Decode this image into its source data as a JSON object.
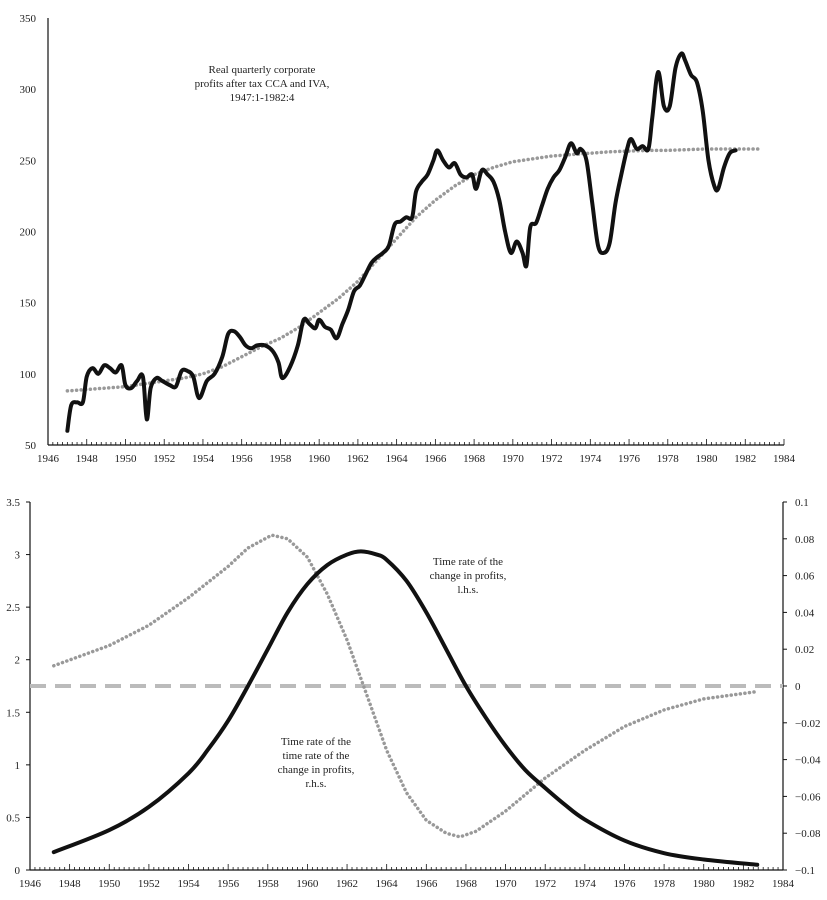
{
  "chart_data": [
    {
      "type": "line",
      "annotation": [
        "Real quarterly corporate",
        "profits after tax CCA and IVA,",
        "1947:1-1982:4"
      ],
      "xlim": [
        1946,
        1984
      ],
      "ylim": [
        50,
        350
      ],
      "xticks": [
        1946,
        1948,
        1950,
        1952,
        1954,
        1956,
        1958,
        1960,
        1962,
        1964,
        1966,
        1968,
        1970,
        1972,
        1974,
        1976,
        1978,
        1980,
        1982,
        1984
      ],
      "yticks": [
        50,
        100,
        150,
        200,
        250,
        300,
        350
      ],
      "grid": false,
      "series": [
        {
          "style": "solid",
          "color": "#111111",
          "x": [
            1947.0,
            1947.2,
            1947.5,
            1947.8,
            1948.0,
            1948.3,
            1948.6,
            1948.9,
            1949.2,
            1949.5,
            1949.8,
            1950.0,
            1950.3,
            1950.6,
            1950.9,
            1951.1,
            1951.3,
            1951.6,
            1951.9,
            1952.3,
            1952.6,
            1952.9,
            1953.2,
            1953.5,
            1953.8,
            1954.2,
            1954.6,
            1955.0,
            1955.3,
            1955.6,
            1955.9,
            1956.2,
            1956.5,
            1956.8,
            1957.2,
            1957.6,
            1957.9,
            1958.1,
            1958.5,
            1958.9,
            1959.2,
            1959.5,
            1959.8,
            1960.0,
            1960.3,
            1960.6,
            1960.9,
            1961.2,
            1961.5,
            1961.8,
            1962.1,
            1962.4,
            1962.7,
            1963.0,
            1963.3,
            1963.6,
            1963.9,
            1964.2,
            1964.5,
            1964.8,
            1965.0,
            1965.3,
            1965.6,
            1965.9,
            1966.1,
            1966.4,
            1966.7,
            1967.0,
            1967.3,
            1967.6,
            1967.9,
            1968.1,
            1968.4,
            1968.7,
            1969.0,
            1969.3,
            1969.6,
            1969.9,
            1970.2,
            1970.5,
            1970.7,
            1970.9,
            1971.2,
            1971.5,
            1971.8,
            1972.1,
            1972.4,
            1972.7,
            1973.0,
            1973.3,
            1973.5,
            1973.8,
            1974.1,
            1974.4,
            1974.7,
            1975.0,
            1975.3,
            1975.6,
            1975.9,
            1976.1,
            1976.4,
            1976.7,
            1977.0,
            1977.2,
            1977.5,
            1977.8,
            1978.1,
            1978.4,
            1978.7,
            1978.9,
            1979.2,
            1979.5,
            1979.8,
            1980.1,
            1980.4,
            1980.6,
            1980.9,
            1981.2,
            1981.5
          ],
          "y": [
            60,
            78,
            80,
            80,
            98,
            104,
            100,
            106,
            104,
            101,
            106,
            92,
            90,
            95,
            98,
            68,
            90,
            97,
            95,
            92,
            91,
            102,
            102,
            98,
            83,
            95,
            100,
            112,
            128,
            130,
            126,
            120,
            118,
            120,
            120,
            116,
            108,
            97,
            105,
            120,
            138,
            135,
            132,
            138,
            133,
            131,
            125,
            135,
            145,
            158,
            162,
            170,
            178,
            182,
            185,
            190,
            205,
            207,
            210,
            210,
            228,
            235,
            240,
            250,
            257,
            250,
            245,
            248,
            240,
            238,
            240,
            230,
            243,
            240,
            235,
            222,
            200,
            185,
            193,
            185,
            176,
            203,
            206,
            218,
            230,
            238,
            243,
            252,
            262,
            255,
            258,
            250,
            220,
            190,
            185,
            192,
            220,
            240,
            258,
            265,
            258,
            260,
            258,
            280,
            312,
            288,
            288,
            315,
            325,
            320,
            310,
            305,
            285,
            250,
            232,
            230,
            245,
            255,
            257
          ]
        },
        {
          "style": "dotted",
          "color": "#999999",
          "x": [
            1947,
            1948,
            1949,
            1950,
            1951,
            1952,
            1953,
            1954,
            1955,
            1956,
            1957,
            1958,
            1959,
            1960,
            1961,
            1962,
            1963,
            1964,
            1965,
            1966,
            1967,
            1968,
            1969,
            1970,
            1971,
            1972,
            1973,
            1974,
            1975,
            1976,
            1977,
            1978,
            1979,
            1980,
            1981,
            1982,
            1982.75
          ],
          "y": [
            88,
            89,
            90,
            91,
            93,
            95,
            97,
            100,
            105,
            112,
            119,
            125,
            133,
            143,
            153,
            165,
            180,
            195,
            210,
            222,
            232,
            240,
            245,
            249,
            251,
            253,
            254,
            255,
            256,
            256.5,
            257,
            257,
            257.5,
            258,
            258,
            258,
            258
          ]
        }
      ]
    },
    {
      "type": "line",
      "xlim": [
        1946,
        1984
      ],
      "ylim": [
        0,
        3.5
      ],
      "y2lim": [
        -0.1,
        0.1
      ],
      "xticks": [
        1946,
        1948,
        1950,
        1952,
        1954,
        1956,
        1958,
        1960,
        1962,
        1964,
        1966,
        1968,
        1970,
        1972,
        1974,
        1976,
        1978,
        1980,
        1982,
        1984
      ],
      "yticks": [
        "0",
        "0.5",
        "1",
        "1.5",
        "2",
        "2.5",
        "3",
        "3.5"
      ],
      "y2ticks": [
        "-0.1",
        "-0.08",
        "-0.06",
        "-0.04",
        "-0.02",
        "0",
        "0.02",
        "0.04",
        "0.06",
        "0.08",
        "0.1"
      ],
      "grid": false,
      "annotations": [
        {
          "lines": [
            "Time rate of the",
            "change in profits,",
            "l.h.s."
          ]
        },
        {
          "lines": [
            "Time rate of the",
            "time rate of the",
            "change in profits,",
            "r.h.s."
          ]
        }
      ],
      "series": [
        {
          "style": "solid",
          "color": "#111111",
          "axis": "left",
          "x": [
            1947.2,
            1950,
            1952,
            1954,
            1955,
            1956,
            1957,
            1958,
            1959,
            1960,
            1961,
            1962,
            1962.7,
            1963.5,
            1964,
            1965,
            1966,
            1967,
            1968,
            1969,
            1970,
            1971,
            1972,
            1973,
            1974,
            1976,
            1978,
            1980,
            1982.7
          ],
          "y": [
            0.17,
            0.38,
            0.6,
            0.92,
            1.15,
            1.42,
            1.75,
            2.1,
            2.45,
            2.72,
            2.9,
            3.0,
            3.03,
            3.0,
            2.95,
            2.75,
            2.45,
            2.1,
            1.75,
            1.45,
            1.18,
            0.95,
            0.78,
            0.62,
            0.48,
            0.28,
            0.16,
            0.1,
            0.05
          ]
        },
        {
          "style": "dotted",
          "color": "#999999",
          "axis": "right",
          "x": [
            1947.2,
            1950,
            1952,
            1954,
            1956,
            1957,
            1958.2,
            1959,
            1960,
            1961,
            1962,
            1963,
            1964,
            1965,
            1966,
            1967,
            1967.7,
            1968.5,
            1970,
            1972,
            1974,
            1976,
            1978,
            1980,
            1982.7
          ],
          "y": [
            0.011,
            0.022,
            0.033,
            0.048,
            0.065,
            0.075,
            0.082,
            0.08,
            0.07,
            0.05,
            0.025,
            -0.005,
            -0.035,
            -0.058,
            -0.073,
            -0.08,
            -0.082,
            -0.079,
            -0.068,
            -0.05,
            -0.035,
            -0.022,
            -0.013,
            -0.007,
            -0.003
          ]
        },
        {
          "style": "dashed",
          "color": "#bbbbbb",
          "axis": "right",
          "x": [
            1946,
            1984
          ],
          "y": [
            0,
            0
          ]
        }
      ]
    }
  ]
}
